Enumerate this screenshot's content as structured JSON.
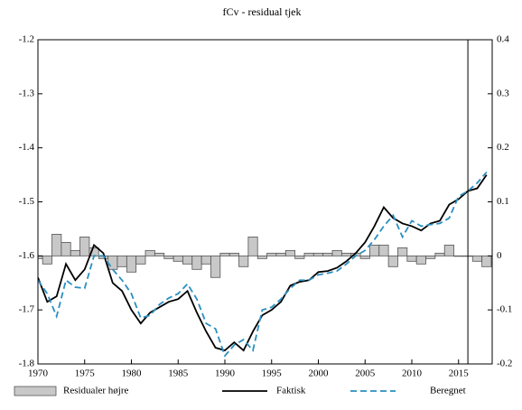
{
  "chart_data": {
    "type": "combo",
    "title": "fCv - residual tjek",
    "x": [
      1970,
      1971,
      1972,
      1973,
      1974,
      1975,
      1976,
      1977,
      1978,
      1979,
      1980,
      1981,
      1982,
      1983,
      1984,
      1985,
      1986,
      1987,
      1988,
      1989,
      1990,
      1991,
      1992,
      1993,
      1994,
      1995,
      1996,
      1997,
      1998,
      1999,
      2000,
      2001,
      2002,
      2003,
      2004,
      2005,
      2006,
      2007,
      2008,
      2009,
      2010,
      2011,
      2012,
      2013,
      2014,
      2015,
      2016,
      2017,
      2018
    ],
    "xlim": [
      1970,
      2018.6
    ],
    "xticks": [
      1970,
      1975,
      1980,
      1985,
      1990,
      1995,
      2000,
      2005,
      2010,
      2015
    ],
    "ylim": [
      -1.8,
      -1.2
    ],
    "yticks": [
      -1.2,
      -1.3,
      -1.4,
      -1.5,
      -1.6,
      -1.7,
      -1.8
    ],
    "y2lim": [
      -0.2,
      0.4
    ],
    "y2ticks": [
      0.4,
      0.3,
      0.2,
      0.1,
      0,
      -0.1,
      -0.2
    ],
    "vline_x": 2016,
    "series": [
      {
        "name": "Residualer højre",
        "type": "bar",
        "axis": "y2",
        "color": "#c8c8c8",
        "values": [
          -0.005,
          -0.015,
          0.04,
          0.025,
          0.01,
          0.035,
          0.015,
          -0.005,
          -0.025,
          -0.02,
          -0.03,
          -0.015,
          0.01,
          0.005,
          -0.005,
          -0.01,
          -0.015,
          -0.025,
          -0.015,
          -0.04,
          0.005,
          0.005,
          -0.02,
          0.035,
          -0.005,
          0.005,
          0.005,
          0.01,
          -0.005,
          0.005,
          0.005,
          0.005,
          0.01,
          0.005,
          0.005,
          -0.005,
          0.02,
          0.02,
          -0.02,
          0.015,
          -0.01,
          -0.015,
          -0.005,
          0.005,
          0.02,
          0.0,
          0.0,
          -0.01,
          -0.02
        ]
      },
      {
        "name": "Faktisk",
        "type": "line",
        "color": "#000000",
        "values": [
          -1.64,
          -1.685,
          -1.675,
          -1.615,
          -1.645,
          -1.625,
          -1.58,
          -1.595,
          -1.65,
          -1.665,
          -1.7,
          -1.725,
          -1.705,
          -1.695,
          -1.685,
          -1.68,
          -1.665,
          -1.705,
          -1.74,
          -1.77,
          -1.775,
          -1.76,
          -1.775,
          -1.74,
          -1.71,
          -1.7,
          -1.685,
          -1.655,
          -1.648,
          -1.645,
          -1.63,
          -1.628,
          -1.622,
          -1.61,
          -1.595,
          -1.575,
          -1.545,
          -1.51,
          -1.53,
          -1.54,
          -1.545,
          -1.553,
          -1.54,
          -1.535,
          -1.505,
          -1.495,
          -1.48,
          -1.475,
          -1.45
        ]
      },
      {
        "name": "Beregnet",
        "type": "dashed",
        "color": "#2a8fc0",
        "values": [
          -1.645,
          -1.67,
          -1.712,
          -1.645,
          -1.658,
          -1.66,
          -1.6,
          -1.6,
          -1.625,
          -1.645,
          -1.67,
          -1.715,
          -1.71,
          -1.69,
          -1.678,
          -1.67,
          -1.652,
          -1.68,
          -1.725,
          -1.735,
          -1.785,
          -1.765,
          -1.755,
          -1.775,
          -1.7,
          -1.695,
          -1.68,
          -1.66,
          -1.645,
          -1.645,
          -1.635,
          -1.632,
          -1.628,
          -1.615,
          -1.6,
          -1.59,
          -1.57,
          -1.545,
          -1.525,
          -1.565,
          -1.535,
          -1.545,
          -1.542,
          -1.54,
          -1.53,
          -1.49,
          -1.48,
          -1.465,
          -1.445
        ]
      }
    ]
  }
}
